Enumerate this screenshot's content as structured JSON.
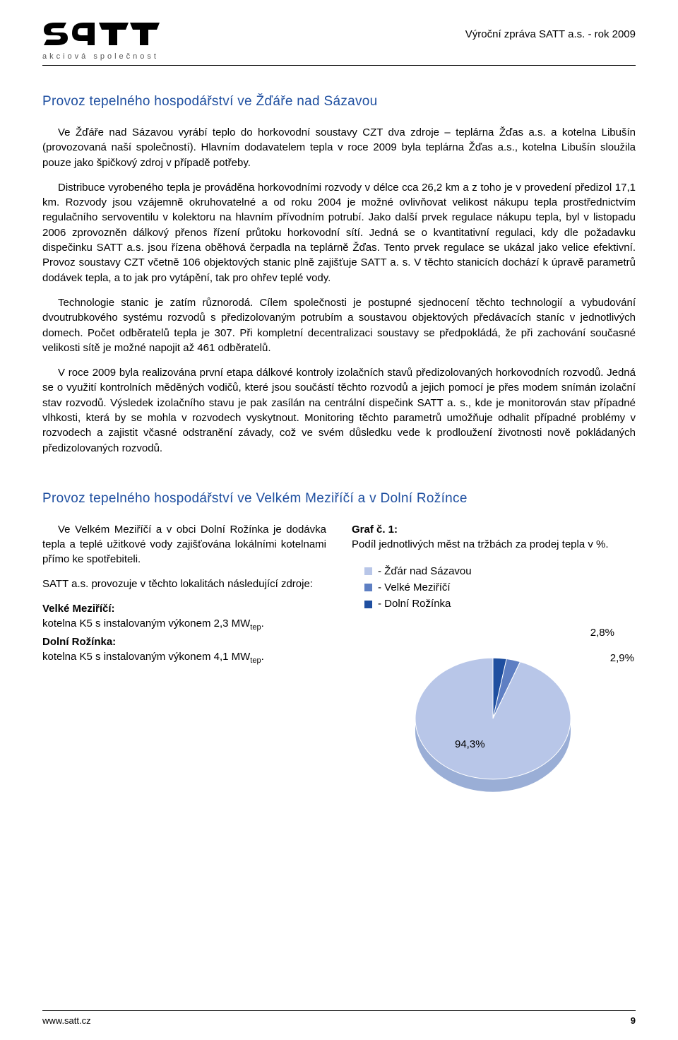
{
  "header": {
    "logo_main": "SaTT",
    "logo_sub": "akciová společnost",
    "right": "Výroční zpráva SATT a.s. - rok 2009"
  },
  "section1": {
    "title": "Provoz tepelného hospodářství ve Žďáře nad Sázavou",
    "p1": "Ve Žďáře nad Sázavou vyrábí teplo do horkovodní soustavy CZT dva zdroje – teplárna Žďas a.s. a kotelna Libušín (provozovaná naší společností). Hlavním dodavatelem tepla v roce 2009 byla teplárna Žďas a.s., kotelna Libušín sloužila pouze jako špičkový zdroj v případě potřeby.",
    "p2": "Distribuce vyrobeného tepla je prováděna horkovodními rozvody v délce cca 26,2 km a z toho je v provedení předizol 17,1 km. Rozvody jsou vzájemně okruhovatelné a od roku 2004 je možné ovlivňovat velikost nákupu tepla prostřednictvím regulačního servoventilu v kolektoru na hlavním přívodním potrubí. Jako další prvek regulace nákupu tepla, byl v listopadu 2006 zprovozněn dálkový přenos řízení průtoku horkovodní sítí. Jedná se o kvantitativní regulaci, kdy dle požadavku dispečinku SATT a.s. jsou řízena oběhová čerpadla na teplárně Žďas. Tento prvek regulace se ukázal jako velice efektivní. Provoz soustavy CZT včetně 106 objektových stanic plně zajišťuje SATT a. s. V těchto stanicích dochází k úpravě parametrů dodávek tepla, a to jak pro vytápění, tak pro ohřev teplé vody.",
    "p3": "Technologie stanic je zatím různorodá. Cílem společnosti je postupné sjednocení těchto technologií a vybudování dvoutrubkového systému rozvodů s předizolovaným potrubím a soustavou objektových předávacích staníc v jednotlivých domech. Počet odběratelů tepla je 307. Při kompletní decentralizaci soustavy se předpokládá, že při zachování současné velikosti sítě je možné napojit až 461 odběratelů.",
    "p4": "V roce 2009 byla realizována první etapa dálkové kontroly izolačních stavů předizolovaných horkovodních rozvodů. Jedná se o využití kontrolních měděných vodičů, které jsou součástí těchto rozvodů a jejich pomocí je přes modem snímán izolační stav rozvodů. Výsledek izolačního stavu je pak zasílán na centrální dispečink SATT a. s., kde je monitorován stav případné vlhkosti, která by se mohla v rozvodech vyskytnout. Monitoring těchto parametrů umožňuje odhalit případné problémy v rozvodech a zajistit včasné odstranění závady, což ve svém důsledku vede k prodloužení životnosti nově pokládaných předizolovaných rozvodů."
  },
  "section2": {
    "title": "Provoz tepelného hospodářství ve Velkém Meziříčí a v Dolní Rožínce",
    "left_p1": "Ve Velkém Meziříčí a v obci Dolní Rožínka je dodávka tepla a teplé užitkové vody zajišťována lokálními kotelnami přímo ke spotřebiteli.",
    "left_p2": "SATT a.s. provozuje v těchto lokalitách následující zdroje:",
    "left_vm_label": "Velké Meziříčí:",
    "left_vm_text": "kotelna K5 s instalovaným výkonem 2,3 MW",
    "left_dr_label": "Dolní Rožínka:",
    "left_dr_text": "kotelna K5 s instalovaným výkonem 4,1 MW",
    "sub_tep": "tep",
    "right_graf_title": "Graf č. 1:",
    "right_graf_sub": "Podíl jednotlivých měst na tržbách za prodej tepla v %."
  },
  "chart": {
    "type": "pie",
    "slices": [
      {
        "label": "- Žďár nad Sázavou",
        "value": 94.3,
        "color": "#b8c6e8",
        "display": "94,3%"
      },
      {
        "label": "- Velké Meziříčí",
        "value": 2.9,
        "color": "#5e7fc3",
        "display": "2,9%"
      },
      {
        "label": "- Dolní Rožínka",
        "value": 2.8,
        "color": "#1f4fa0",
        "display": "2,8%"
      }
    ],
    "legend_sq_colors": [
      "#b8c6e8",
      "#5e7fc3",
      "#1f4fa0"
    ],
    "background": "#ffffff",
    "label_fontsize": 15
  },
  "footer": {
    "url": "www.satt.cz",
    "page": "9"
  }
}
